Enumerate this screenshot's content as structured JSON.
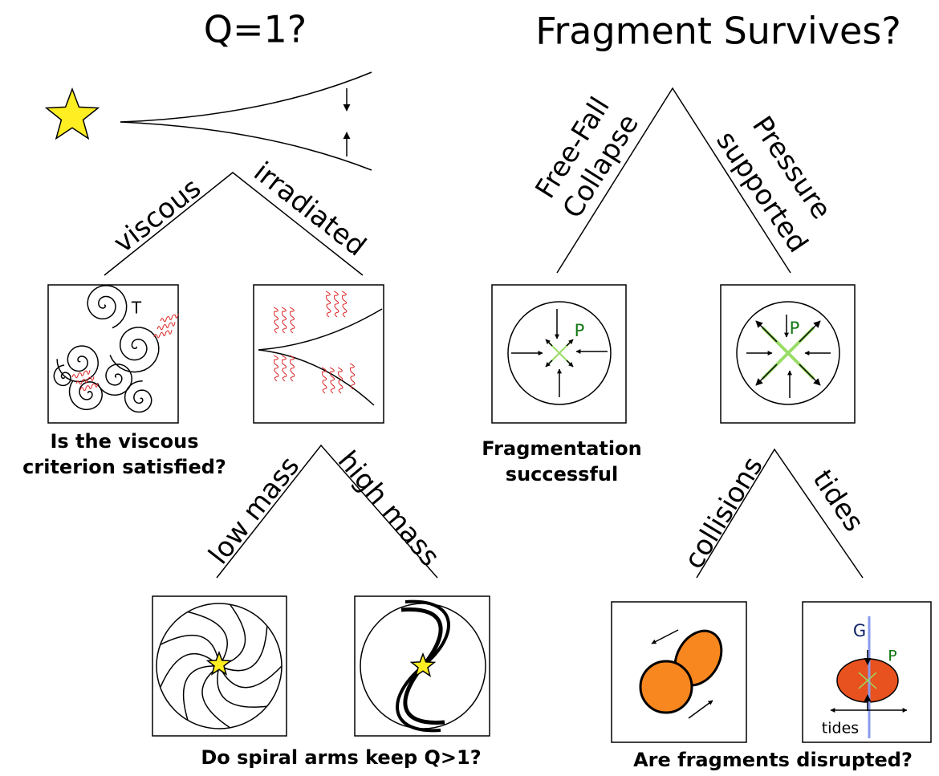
{
  "left": {
    "title": "Q=1?",
    "branches": [
      "viscous",
      "irradiated"
    ],
    "viscous_box_label": "T",
    "question": [
      "Is the viscous",
      "criterion satisfied?"
    ],
    "sub_branches": [
      "low mass",
      "high mass"
    ],
    "sub_question": "Do spiral arms keep Q>1?"
  },
  "right": {
    "title": "Fragment Survives?",
    "branches": [
      [
        "Free-Fall",
        "Collapse"
      ],
      [
        "Pressure",
        "supported"
      ]
    ],
    "pressure_label": "P",
    "result": [
      "Fragmentation",
      "successful"
    ],
    "sub_branches": [
      "collisions",
      "tides"
    ],
    "gravity_label": "G",
    "tides_label": "tides",
    "sub_question": "Are fragments disrupted?"
  }
}
